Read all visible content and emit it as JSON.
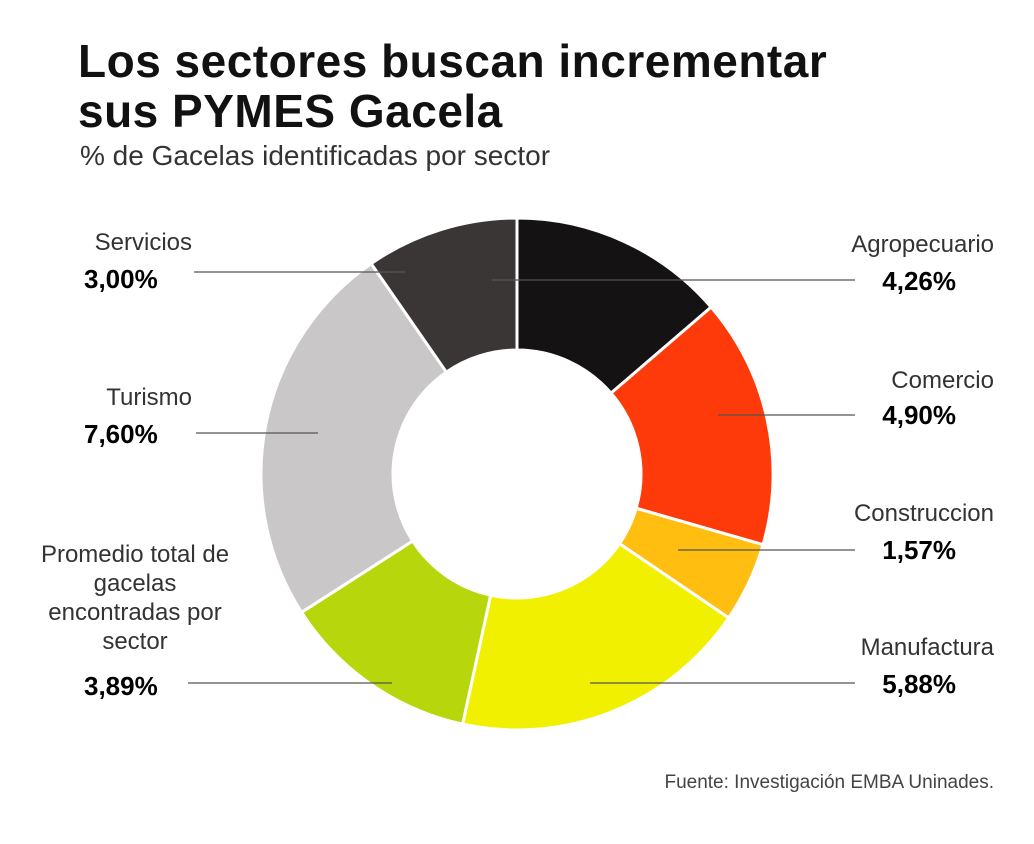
{
  "chart_data": {
    "type": "donut",
    "title": "Los sectores buscan incrementar sus PYMES Gacela",
    "subtitle": "% de Gacelas identificadas por sector",
    "source": "Fuente: Investigación EMBA Uninades.",
    "categories": [
      "Agropecuario",
      "Comercio",
      "Construccion",
      "Manufactura",
      "Promedio total de gacelas encontradas por sector",
      "Turismo",
      "Servicios"
    ],
    "values": [
      4.26,
      4.9,
      1.57,
      5.88,
      3.89,
      7.6,
      3.0
    ],
    "value_labels": [
      "4,26%",
      "4,90%",
      "1,57%",
      "5,88%",
      "3,89%",
      "7,60%",
      "3,00%"
    ],
    "colors": [
      "#141212",
      "#ff3a0a",
      "#ffbe10",
      "#f0f000",
      "#b8d60c",
      "#c9c7c7",
      "#3b3636"
    ]
  }
}
